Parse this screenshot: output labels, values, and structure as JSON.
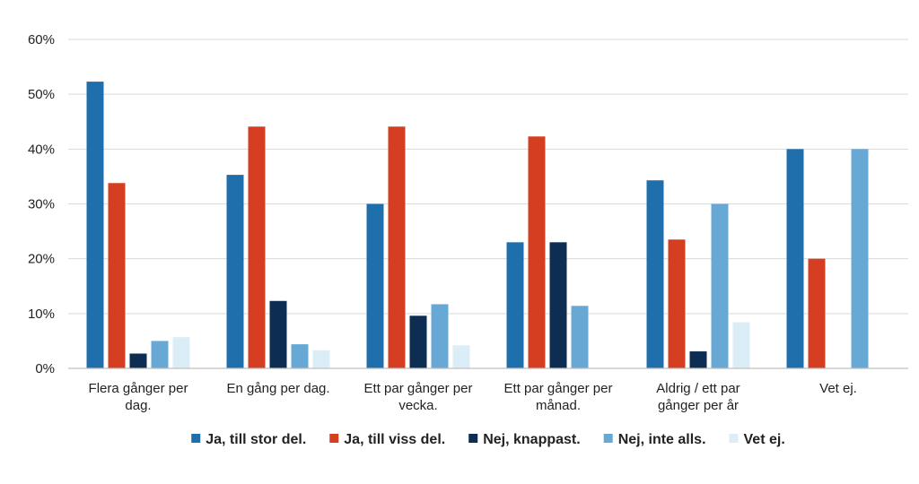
{
  "chart_data": {
    "type": "bar",
    "title": "",
    "xlabel": "",
    "ylabel": "",
    "ylim": [
      0,
      60
    ],
    "yticks": [
      {
        "value": 0,
        "label": "0%"
      },
      {
        "value": 10,
        "label": "10%"
      },
      {
        "value": 20,
        "label": "20%"
      },
      {
        "value": 30,
        "label": "30%"
      },
      {
        "value": 40,
        "label": "40%"
      },
      {
        "value": 50,
        "label": "50%"
      },
      {
        "value": 60,
        "label": "60%"
      }
    ],
    "grid": true,
    "legend_position": "bottom",
    "categories": [
      [
        "Flera gånger per",
        "dag."
      ],
      [
        "En gång per dag."
      ],
      [
        "Ett par gånger per",
        "vecka."
      ],
      [
        "Ett par gånger per",
        "månad."
      ],
      [
        "Aldrig / ett par",
        "gånger per år"
      ],
      [
        "Vet ej."
      ]
    ],
    "series": [
      {
        "name": "Ja, till stor del.",
        "color": "#1f6fad",
        "values": [
          52.3,
          35.3,
          30.0,
          23.0,
          34.3,
          40.0
        ]
      },
      {
        "name": "Ja, till viss del.",
        "color": "#d63e21",
        "values": [
          33.8,
          44.1,
          44.1,
          42.3,
          23.5,
          20.0
        ]
      },
      {
        "name": "Nej, knappast.",
        "color": "#0d2d52",
        "values": [
          2.7,
          12.3,
          9.6,
          23.0,
          3.1,
          0
        ]
      },
      {
        "name": "Nej, inte alls.",
        "color": "#67a9d4",
        "values": [
          5.0,
          4.4,
          11.7,
          11.4,
          30.0,
          40.0
        ]
      },
      {
        "name": "Vet ej.",
        "color": "#dbeef7",
        "values": [
          5.7,
          3.3,
          4.2,
          0,
          8.4,
          0
        ]
      }
    ]
  }
}
